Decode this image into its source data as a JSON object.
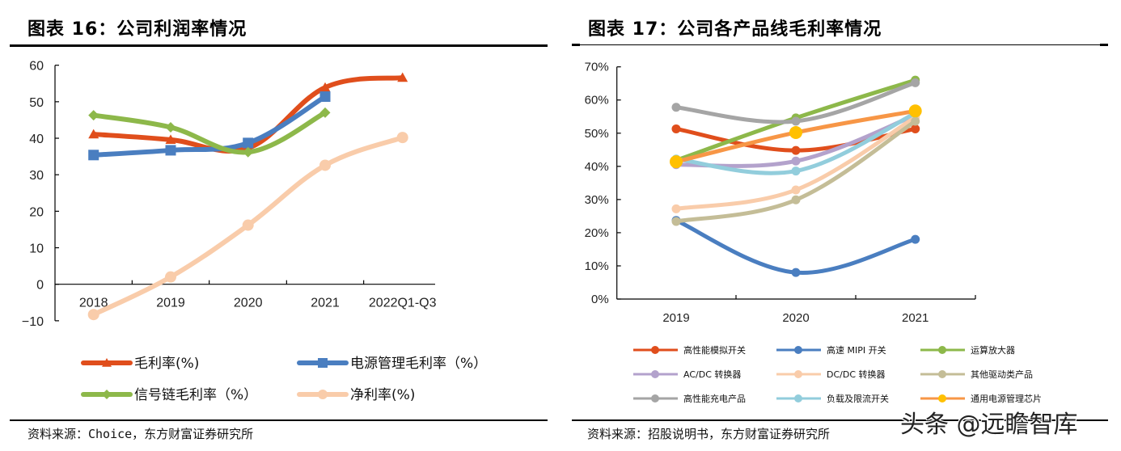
{
  "left": {
    "title": "图表 16：公司利润率情况",
    "source": "资料来源：Choice，东方财富证券研究所"
  },
  "right": {
    "title": "图表 17：公司各产品线毛利率情况",
    "source": "资料来源：招股说明书，东方财富证券研究所"
  },
  "watermark": "头条 @远瞻智库",
  "chart_data": [
    {
      "type": "line",
      "title": "图表 16：公司利润率情况",
      "xlabel": "",
      "ylabel": "",
      "categories": [
        "2018",
        "2019",
        "2020",
        "2021",
        "2022Q1-Q3"
      ],
      "ylim": [
        -10,
        60
      ],
      "yticks": [
        -10,
        0,
        10,
        20,
        30,
        40,
        50,
        60
      ],
      "ytick_labels": [
        "−10",
        "0",
        "10",
        "20",
        "30",
        "40",
        "50",
        "60"
      ],
      "grid": false,
      "smooth": true,
      "legend_position": "bottom",
      "series": [
        {
          "name": "毛利率(%)",
          "color": "#E04E1C",
          "marker": "triangle",
          "values": [
            41.1,
            39.6,
            37.3,
            53.9,
            56.6
          ]
        },
        {
          "name": "电源管理毛利率（%）",
          "color": "#4A7EC0",
          "marker": "square",
          "values": [
            35.4,
            36.7,
            38.7,
            51.4,
            null
          ]
        },
        {
          "name": "信号链毛利率（%）",
          "color": "#8DB84A",
          "marker": "diamond",
          "values": [
            46.3,
            43.0,
            36.2,
            47.0,
            null
          ]
        },
        {
          "name": "净利率(%)",
          "color": "#F9CCAA",
          "marker": "circle",
          "values": [
            -8.3,
            2.0,
            16.2,
            32.6,
            40.2
          ]
        }
      ]
    },
    {
      "type": "line",
      "title": "图表 17：公司各产品线毛利率情况",
      "xlabel": "",
      "ylabel": "",
      "categories": [
        "2019",
        "2020",
        "2021"
      ],
      "ylim": [
        0,
        70
      ],
      "yticks": [
        0,
        10,
        20,
        30,
        40,
        50,
        60,
        70
      ],
      "ytick_labels": [
        "0%",
        "10%",
        "20%",
        "30%",
        "40%",
        "50%",
        "60%",
        "70%"
      ],
      "grid": false,
      "smooth": true,
      "legend_position": "bottom",
      "series": [
        {
          "name": "高性能模拟开关",
          "color": "#E04E1C",
          "marker_color": "#E04E1C",
          "values": [
            51.3,
            44.8,
            51.3
          ]
        },
        {
          "name": "高速 MIPI 开关",
          "color": "#4A7EC0",
          "marker_color": "#4A7EC0",
          "values": [
            23.7,
            8.0,
            18.0
          ]
        },
        {
          "name": "运算放大器",
          "color": "#8DB84A",
          "marker_color": "#8DB84A",
          "values": [
            41.8,
            54.6,
            66.0
          ]
        },
        {
          "name": "AC/DC 转换器",
          "color": "#B3A2CC",
          "marker_color": "#B3A2CC",
          "values": [
            40.5,
            41.6,
            55.4
          ]
        },
        {
          "name": "DC/DC 转换器",
          "color": "#F9CCAA",
          "marker_color": "#F9CCAA",
          "values": [
            27.2,
            32.9,
            54.8
          ]
        },
        {
          "name": "其他驱动类产品",
          "color": "#C4BD97",
          "marker_color": "#C4BD97",
          "values": [
            23.4,
            29.9,
            53.6
          ]
        },
        {
          "name": "高性能充电产品",
          "color": "#A5A5A5",
          "marker_color": "#A5A5A5",
          "values": [
            57.8,
            53.6,
            65.2
          ]
        },
        {
          "name": "负载及限流开关",
          "color": "#92CDDC",
          "marker_color": "#92CDDC",
          "values": [
            42.2,
            38.6,
            56.0
          ]
        },
        {
          "name": "通用电源管理芯片",
          "color": "#F79646",
          "marker_color": "#FFC000",
          "values": [
            41.4,
            50.2,
            56.7
          ]
        }
      ]
    }
  ]
}
